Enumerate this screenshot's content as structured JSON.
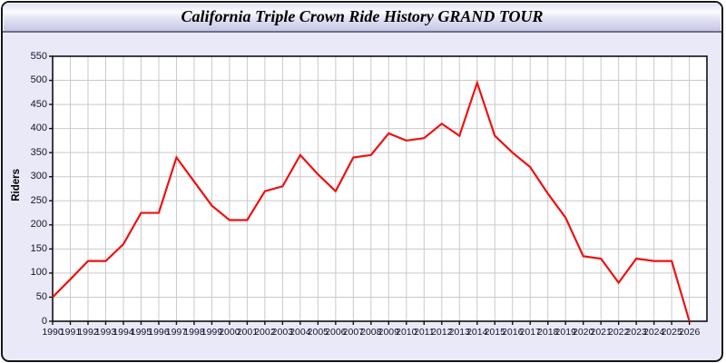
{
  "header": {
    "title": "California Triple Crown Ride History GRAND TOUR"
  },
  "chart_data": {
    "type": "line",
    "title": "California Triple Crown Ride History GRAND TOUR",
    "xlabel": "",
    "ylabel": "Riders",
    "x": [
      1990,
      1991,
      1992,
      1993,
      1994,
      1995,
      1996,
      1997,
      1998,
      1999,
      2000,
      2001,
      2002,
      2003,
      2004,
      2005,
      2006,
      2007,
      2008,
      2009,
      2010,
      2011,
      2012,
      2013,
      2014,
      2015,
      2016,
      2017,
      2018,
      2019,
      2020,
      2021,
      2022,
      2023,
      2024,
      2025,
      2026
    ],
    "series": [
      {
        "name": "Riders",
        "color": "#ee1111",
        "values": [
          50,
          87,
          125,
          125,
          160,
          225,
          225,
          340,
          290,
          240,
          210,
          210,
          270,
          280,
          345,
          305,
          270,
          340,
          345,
          390,
          375,
          380,
          410,
          385,
          495,
          385,
          350,
          320,
          265,
          215,
          135,
          130,
          80,
          130,
          125,
          125,
          0
        ]
      }
    ],
    "ylim": [
      0,
      550
    ],
    "ytick_step": 50,
    "grid": true,
    "legend_position": "none",
    "plot_bg": "#ffffff",
    "grid_color": "#c9c9c9",
    "axis_color": "#111111"
  }
}
